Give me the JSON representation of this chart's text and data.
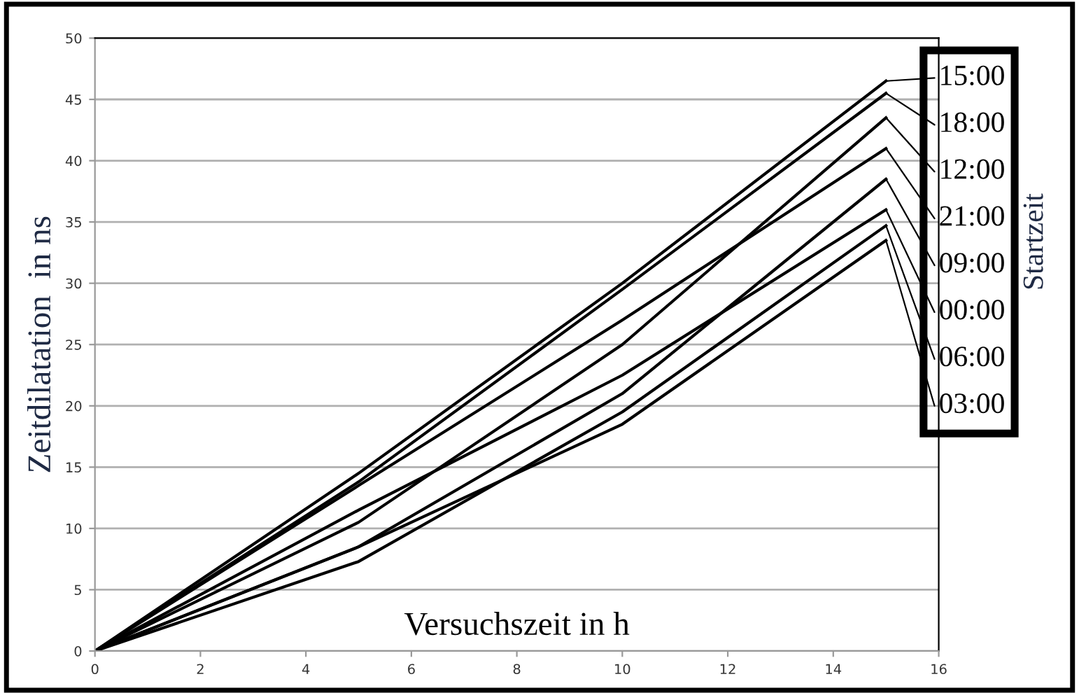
{
  "chart_data": {
    "type": "line",
    "xlabel": "Versuchszeit in h",
    "ylabel": "Zeitdilatation  in ns",
    "legend_title": "Startzeit",
    "x": [
      0,
      5,
      10,
      15
    ],
    "series": [
      {
        "name": "15:00",
        "color": "#000000",
        "values": [
          0,
          14.5,
          30,
          46.5
        ]
      },
      {
        "name": "18:00",
        "color": "#000000",
        "values": [
          0,
          13.8,
          29.5,
          45.5
        ]
      },
      {
        "name": "12:00",
        "color": "#000000",
        "values": [
          0,
          10.5,
          25,
          43.5
        ]
      },
      {
        "name": "21:00",
        "color": "#000000",
        "values": [
          0,
          13.5,
          27,
          41
        ]
      },
      {
        "name": "09:00",
        "color": "#000000",
        "values": [
          0,
          8.5,
          21,
          38.5
        ]
      },
      {
        "name": "00:00",
        "color": "#000000",
        "values": [
          0,
          11.5,
          22.5,
          36
        ]
      },
      {
        "name": "06:00",
        "color": "#000000",
        "values": [
          0,
          7.3,
          19.5,
          34.7
        ]
      },
      {
        "name": "03:00",
        "color": "#000000",
        "values": [
          0,
          8.5,
          18.5,
          33.5
        ]
      }
    ],
    "xlim": [
      0,
      16
    ],
    "xticks": [
      0,
      2,
      4,
      6,
      8,
      10,
      12,
      14,
      16
    ],
    "ylim": [
      0,
      50
    ],
    "yticks": [
      0,
      5,
      10,
      15,
      20,
      25,
      30,
      35,
      40,
      45,
      50
    ],
    "grid": "y",
    "legend": "right",
    "marker": "none",
    "line_style": "solid"
  }
}
